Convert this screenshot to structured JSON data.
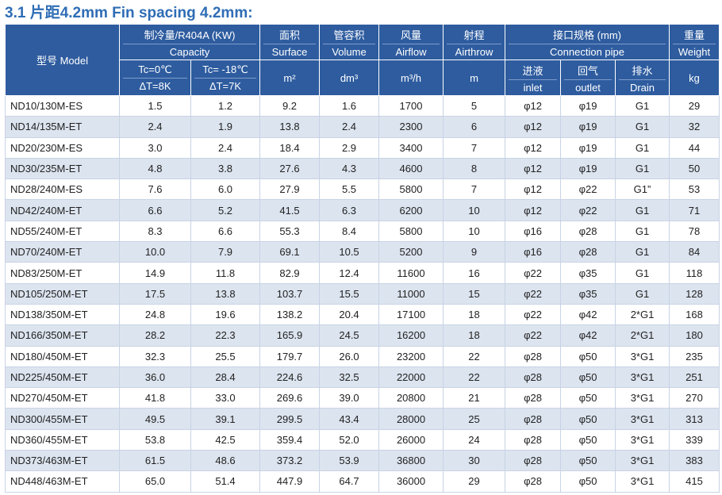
{
  "title": "3.1 片距4.2mm  Fin spacing 4.2mm:",
  "table": {
    "header": {
      "model": "型号 Model",
      "capacity": [
        "制冷量/R404A (KW)",
        "Capacity"
      ],
      "tc0": [
        "Tc=0℃",
        "ΔT=8K"
      ],
      "tc18": [
        "Tc= -18℃",
        "ΔT=7K"
      ],
      "surface": [
        "面积",
        "Surface",
        "m²"
      ],
      "volume": [
        "管容积",
        "Volume",
        "dm³"
      ],
      "airflow": [
        "风量",
        "Airflow",
        "m³/h"
      ],
      "airthrow": [
        "射程",
        "Airthrow",
        "m"
      ],
      "connection": [
        "接口规格 (mm)",
        "Connection pipe"
      ],
      "inlet": [
        "进液",
        "inlet"
      ],
      "outlet": [
        "回气",
        "outlet"
      ],
      "drain": [
        "排水",
        "Drain"
      ],
      "weight": [
        "重量",
        "Weight",
        "kg"
      ]
    },
    "rows": [
      [
        "ND10/130M-ES",
        "1.5",
        "1.2",
        "9.2",
        "1.6",
        "1700",
        "5",
        "φ12",
        "φ19",
        "G1",
        "29"
      ],
      [
        "ND14/135M-ET",
        "2.4",
        "1.9",
        "13.8",
        "2.4",
        "2300",
        "6",
        "φ12",
        "φ19",
        "G1",
        "32"
      ],
      [
        "ND20/230M-ES",
        "3.0",
        "2.4",
        "18.4",
        "2.9",
        "3400",
        "7",
        "φ12",
        "φ19",
        "G1",
        "44"
      ],
      [
        "ND30/235M-ET",
        "4.8",
        "3.8",
        "27.6",
        "4.3",
        "4600",
        "8",
        "φ12",
        "φ19",
        "G1",
        "50"
      ],
      [
        "ND28/240M-ES",
        "7.6",
        "6.0",
        "27.9",
        "5.5",
        "5800",
        "7",
        "φ12",
        "φ22",
        "G1”",
        "53"
      ],
      [
        "ND42/240M-ET",
        "6.6",
        "5.2",
        "41.5",
        "6.3",
        "6200",
        "10",
        "φ12",
        "φ22",
        "G1",
        "71"
      ],
      [
        "ND55/240M-ET",
        "8.3",
        "6.6",
        "55.3",
        "8.4",
        "5800",
        "10",
        "φ16",
        "φ28",
        "G1",
        "78"
      ],
      [
        "ND70/240M-ET",
        "10.0",
        "7.9",
        "69.1",
        "10.5",
        "5200",
        "9",
        "φ16",
        "φ28",
        "G1",
        "84"
      ],
      [
        "ND83/250M-ET",
        "14.9",
        "11.8",
        "82.9",
        "12.4",
        "11600",
        "16",
        "φ22",
        "φ35",
        "G1",
        "118"
      ],
      [
        "ND105/250M-ET",
        "17.5",
        "13.8",
        "103.7",
        "15.5",
        "11000",
        "15",
        "φ22",
        "φ35",
        "G1",
        "128"
      ],
      [
        "ND138/350M-ET",
        "24.8",
        "19.6",
        "138.2",
        "20.4",
        "17100",
        "18",
        "φ22",
        "φ42",
        "2*G1",
        "168"
      ],
      [
        "ND166/350M-ET",
        "28.2",
        "22.3",
        "165.9",
        "24.5",
        "16200",
        "18",
        "φ22",
        "φ42",
        "2*G1",
        "180"
      ],
      [
        "ND180/450M-ET",
        "32.3",
        "25.5",
        "179.7",
        "26.0",
        "23200",
        "22",
        "φ28",
        "φ50",
        "3*G1",
        "235"
      ],
      [
        "ND225/450M-ET",
        "36.0",
        "28.4",
        "224.6",
        "32.5",
        "22000",
        "22",
        "φ28",
        "φ50",
        "3*G1",
        "251"
      ],
      [
        "ND270/450M-ET",
        "41.8",
        "33.0",
        "269.6",
        "39.0",
        "20800",
        "21",
        "φ28",
        "φ50",
        "3*G1",
        "270"
      ],
      [
        "ND300/455M-ET",
        "49.5",
        "39.1",
        "299.5",
        "43.4",
        "28000",
        "25",
        "φ28",
        "φ50",
        "3*G1",
        "313"
      ],
      [
        "ND360/455M-ET",
        "53.8",
        "42.5",
        "359.4",
        "52.0",
        "26000",
        "24",
        "φ28",
        "φ50",
        "3*G1",
        "339"
      ],
      [
        "ND373/463M-ET",
        "61.5",
        "48.6",
        "373.2",
        "53.9",
        "36800",
        "30",
        "φ28",
        "φ50",
        "3*G1",
        "383"
      ],
      [
        "ND448/463M-ET",
        "65.0",
        "51.4",
        "447.9",
        "64.7",
        "36000",
        "29",
        "φ28",
        "φ50",
        "3*G1",
        "415"
      ]
    ]
  }
}
